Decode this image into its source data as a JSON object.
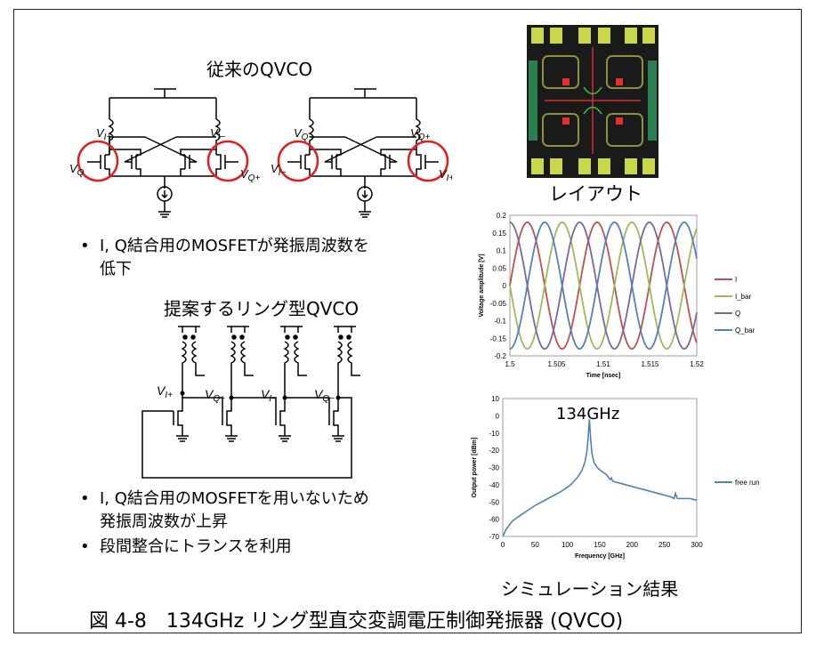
{
  "conventional_title": "従来のQVCO",
  "conventional_labels": [
    "V_{I+}",
    "V_{I−}",
    "V_Q",
    "V_{Q+}",
    "V_{Q−}",
    "V_{Q+}",
    "V_{I−}",
    "V_{I+}"
  ],
  "bullets_top": [
    "I, Q結合用のMOSFETが発振周波数を",
    "低下"
  ],
  "ring_title": "提案するリング型QVCO",
  "ring_labels": [
    "V_{I+}",
    "V_{Q+}",
    "V_{I−}",
    "V_{Q−}"
  ],
  "bullets_bottom": [
    "I, Q結合用のMOSFETを用いないため",
    "発振周波数が上昇",
    "段間整合にトランスを利用"
  ],
  "layout_caption": "レイアウト",
  "sim_caption": "シミュレーション結果",
  "figure_caption": "図 4-8　134GHz リング型直交変調電圧制御発振器 (QVCO)",
  "chart_data": [
    {
      "type": "line",
      "xlabel": "Time [nsec]",
      "ylabel": "Voltage amplitude [V]",
      "xlim": [
        1.5,
        1.52
      ],
      "ylim": [
        -0.2,
        0.2
      ],
      "xticks": [
        "1.5",
        "1.505",
        "1.51",
        "1.515",
        "1.52"
      ],
      "yticks": [
        "0.2",
        "0.15",
        "0.1",
        "0.05",
        "0",
        "-0.05",
        "-0.1",
        "-0.15",
        "-0.2"
      ],
      "legend_position": "right",
      "amplitude": 0.18,
      "frequency_ghz": 134,
      "series": [
        {
          "name": "I",
          "phase_deg": 0,
          "color": "#c0504d"
        },
        {
          "name": "I_bar",
          "phase_deg": 180,
          "color": "#9bbb59"
        },
        {
          "name": "Q",
          "phase_deg": 90,
          "color": "#8064a2"
        },
        {
          "name": "Q_bar",
          "phase_deg": 270,
          "color": "#4f81bd"
        }
      ]
    },
    {
      "type": "line",
      "xlabel": "Frequency [GHz]",
      "ylabel": "Output power [dBm]",
      "xlim": [
        0,
        300
      ],
      "ylim": [
        -70,
        10
      ],
      "xticks": [
        "0",
        "50",
        "100",
        "150",
        "200",
        "250",
        "300"
      ],
      "yticks": [
        "10",
        "0",
        "-10",
        "-20",
        "-30",
        "-40",
        "-50",
        "-60",
        "-70"
      ],
      "legend_position": "right",
      "annotation": "134GHz",
      "series": [
        {
          "name": "free run",
          "color": "#4f81bd",
          "x": [
            0,
            5,
            15,
            30,
            50,
            70,
            90,
            105,
            115,
            122,
            127,
            130,
            132,
            133,
            134,
            135,
            136,
            138,
            141,
            146,
            152,
            160,
            166,
            168,
            170,
            180,
            200,
            220,
            240,
            260,
            265,
            267,
            270,
            280,
            290,
            300
          ],
          "y": [
            -70,
            -66,
            -61,
            -57,
            -52,
            -48,
            -44,
            -40,
            -36,
            -32,
            -27,
            -21,
            -13,
            -7,
            -2,
            -8,
            -14,
            -22,
            -27,
            -30,
            -32,
            -34,
            -37,
            -36,
            -38,
            -39,
            -41,
            -43,
            -45,
            -47,
            -48,
            -45,
            -48,
            -48,
            -48,
            -49
          ]
        }
      ]
    }
  ]
}
